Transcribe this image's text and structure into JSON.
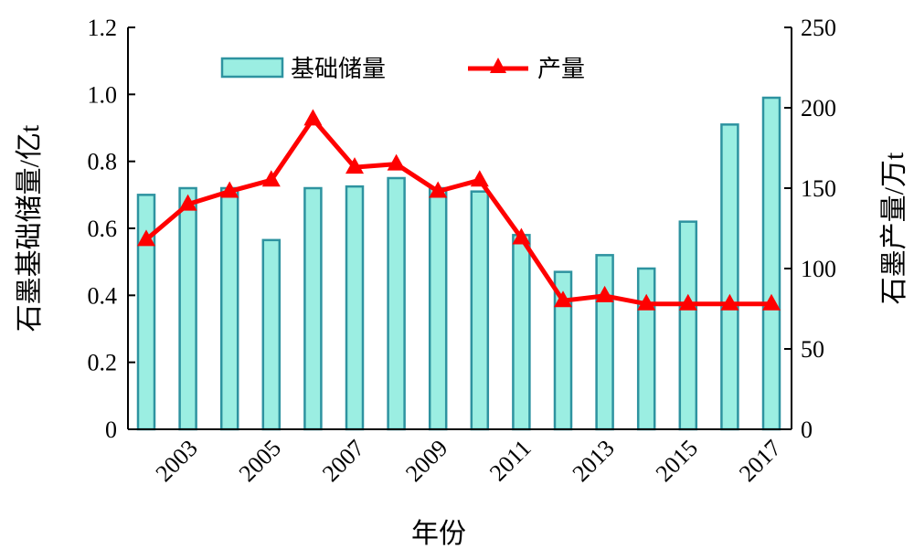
{
  "chart_data": {
    "type": "bar+line",
    "xlabel": "年份",
    "ylabel_left": "石墨基础储量/亿t",
    "ylabel_right": "石墨产量/万t",
    "ylim_left": [
      0,
      1.2
    ],
    "yticks_left": [
      "0",
      "0.2",
      "0.4",
      "0.6",
      "0.8",
      "1.0",
      "1.2"
    ],
    "ylim_right": [
      0,
      250
    ],
    "yticks_right": [
      "0",
      "50",
      "100",
      "150",
      "200",
      "250"
    ],
    "categories": [
      2002,
      2003,
      2004,
      2005,
      2006,
      2007,
      2008,
      2009,
      2010,
      2011,
      2012,
      2013,
      2014,
      2015,
      2016,
      2017
    ],
    "xtick_labels": [
      "2003",
      "2005",
      "2007",
      "2009",
      "2011",
      "2013",
      "2015",
      "2017"
    ],
    "legend_position": "top",
    "series": [
      {
        "name": "基础储量",
        "type": "bar",
        "axis": "left",
        "color": "#9beee2",
        "edge": "#2e93a0",
        "values": [
          0.7,
          0.72,
          0.72,
          0.565,
          0.72,
          0.725,
          0.75,
          0.72,
          0.71,
          0.58,
          0.47,
          0.52,
          0.48,
          0.62,
          0.91,
          0.99
        ]
      },
      {
        "name": "产量",
        "type": "line",
        "axis": "right",
        "color": "#ff0000",
        "marker": "triangle",
        "values": [
          118,
          140,
          148,
          155,
          193,
          163,
          165,
          148,
          155,
          119,
          80,
          83,
          78,
          78,
          78,
          78
        ]
      }
    ]
  }
}
